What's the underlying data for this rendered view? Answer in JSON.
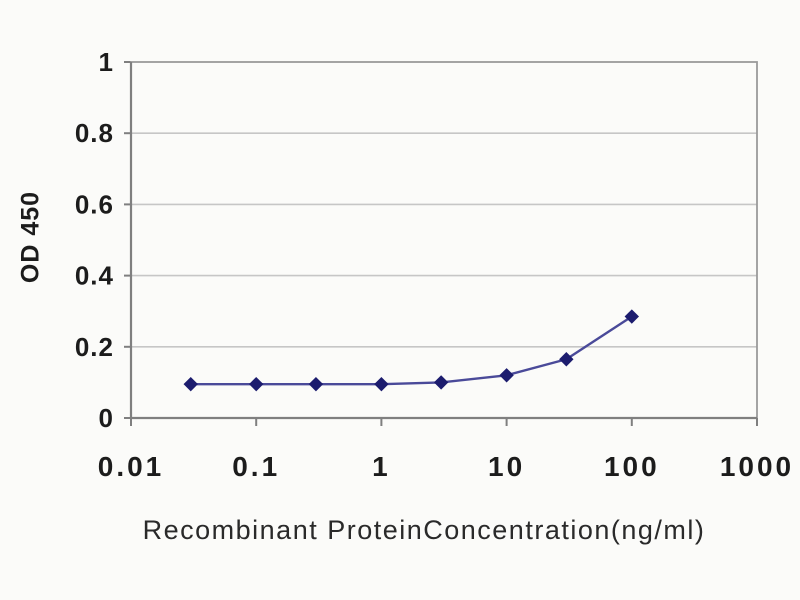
{
  "chart_data": {
    "type": "line",
    "title": "",
    "xlabel": "Recombinant ProteinConcentration(ng/ml)",
    "ylabel": "OD 450",
    "x_scale": "log",
    "xlim": [
      0.01,
      1000
    ],
    "ylim": [
      0,
      1
    ],
    "x_ticks": [
      "0.01",
      "0.1",
      "1",
      "10",
      "100",
      "1000"
    ],
    "y_ticks": [
      "0",
      "0.2",
      "0.4",
      "0.6",
      "0.8",
      "1"
    ],
    "grid": "horizontal",
    "legend": "none",
    "series": [
      {
        "name": "OD450",
        "x": [
          0.03,
          0.1,
          0.3,
          1,
          3,
          10,
          30,
          100
        ],
        "y": [
          0.095,
          0.095,
          0.095,
          0.095,
          0.1,
          0.12,
          0.165,
          0.285
        ],
        "marker": "diamond",
        "line_color": "#4a4a99",
        "marker_color": "#1c1c6e"
      }
    ],
    "colors": {
      "background": "#fbfbf9",
      "grid": "#c6c6c6",
      "plot_border": "#9a9a9a",
      "axis": "#7f7f7f",
      "tick_text": "#1c1c1c"
    }
  }
}
